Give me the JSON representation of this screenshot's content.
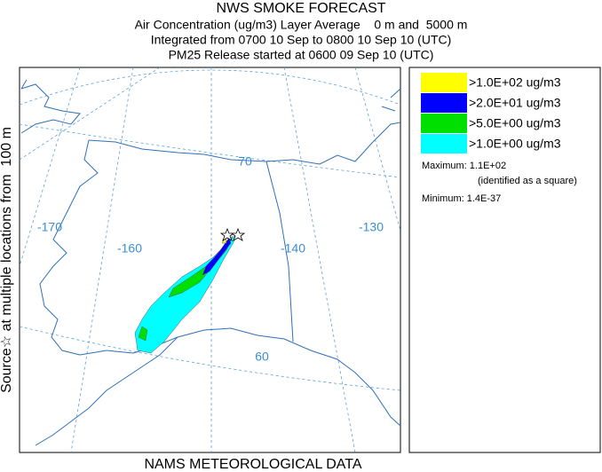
{
  "header": {
    "title": "NWS SMOKE FORECAST",
    "lines": [
      "Air Concentration (ug/m3) Layer Average    0 m and  5000 m",
      "Integrated from 0700 10 Sep to 0800 10 Sep 10 (UTC)",
      "PM25 Release started at 0600 09 Sep 10 (UTC)"
    ]
  },
  "side_label": "Source☆ at multiple locations from  100 m",
  "footer": "NAMS METEOROLOGICAL DATA",
  "map": {
    "labels": [
      "-170",
      "-160",
      "-140",
      "-130",
      "70",
      "60"
    ]
  },
  "legend": {
    "entries": [
      {
        "label": ">1.0E+02 ug/m3",
        "color": "#ffff00"
      },
      {
        "label": ">2.0E+01 ug/m3",
        "color": "#0000ff"
      },
      {
        "label": ">5.0E+00 ug/m3",
        "color": "#00e000"
      },
      {
        "label": ">1.0E+00 ug/m3",
        "color": "#00ffff"
      }
    ],
    "maximum": "Maximum: 1.1E+02",
    "max_note": "(identified as a square)",
    "minimum": "Minimum: 1.4E-37"
  }
}
